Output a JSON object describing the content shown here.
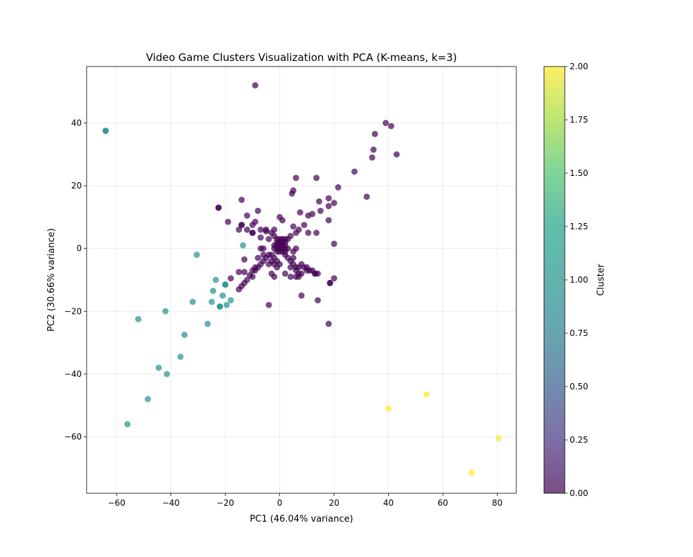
{
  "chart_data": {
    "type": "scatter",
    "title": "Video Game Clusters Visualization with PCA (K-means, k=3)",
    "xlabel": "PC1 (46.04% variance)",
    "ylabel": "PC2 (30.66% variance)",
    "xlim": [
      -71,
      87
    ],
    "ylim": [
      -78,
      58
    ],
    "xticks": [
      -60,
      -40,
      -20,
      0,
      20,
      40,
      60,
      80
    ],
    "yticks": [
      -60,
      -40,
      -20,
      0,
      20,
      40
    ],
    "grid": true,
    "marker_alpha": 0.7,
    "colormap": "viridis",
    "colorbar": {
      "label": "Cluster",
      "range": [
        0,
        2
      ],
      "ticks": [
        "0.00",
        "0.25",
        "0.50",
        "0.75",
        "1.00",
        "1.25",
        "1.50",
        "1.75",
        "2.00"
      ]
    },
    "series": [
      {
        "cluster": 0,
        "color": "#440154",
        "points": [
          [
            -9,
            52
          ],
          [
            39,
            40
          ],
          [
            41,
            39
          ],
          [
            35,
            36.5
          ],
          [
            34.5,
            31.5
          ],
          [
            43,
            30
          ],
          [
            34,
            29
          ],
          [
            27.5,
            24.5
          ],
          [
            21.5,
            19.5
          ],
          [
            13.5,
            22.5
          ],
          [
            6,
            22.5
          ],
          [
            5,
            18.5
          ],
          [
            4.5,
            17.5
          ],
          [
            32,
            16.5
          ],
          [
            18,
            16
          ],
          [
            14.5,
            15
          ],
          [
            20,
            14.5
          ],
          [
            18,
            13.5
          ],
          [
            15,
            12
          ],
          [
            7.5,
            11.5
          ],
          [
            12,
            11
          ],
          [
            10.5,
            10.5
          ],
          [
            18,
            9
          ],
          [
            -14,
            15.5
          ],
          [
            -8,
            12
          ],
          [
            -12,
            10.5
          ],
          [
            -19,
            8.5
          ],
          [
            -9,
            8.5
          ],
          [
            -14,
            7.5
          ],
          [
            -14,
            7.5
          ],
          [
            -10,
            7.5
          ],
          [
            -15,
            6
          ],
          [
            -12,
            6
          ],
          [
            -7,
            6
          ],
          [
            -5,
            6
          ],
          [
            -2,
            6
          ],
          [
            -5,
            5.5
          ],
          [
            -3,
            5
          ],
          [
            -2,
            4
          ],
          [
            -7,
            3.5
          ],
          [
            -4,
            3
          ],
          [
            -10,
            5
          ],
          [
            -10,
            5
          ],
          [
            0,
            10
          ],
          [
            1,
            9
          ],
          [
            5,
            7
          ],
          [
            9,
            7.5
          ],
          [
            7,
            6
          ],
          [
            6,
            5
          ],
          [
            4,
            4
          ],
          [
            3,
            3
          ],
          [
            10.5,
            5
          ],
          [
            13.5,
            5
          ],
          [
            -1,
            3
          ],
          [
            0,
            3
          ],
          [
            1,
            3
          ],
          [
            2,
            3
          ],
          [
            -1,
            2
          ],
          [
            0,
            2
          ],
          [
            1,
            2
          ],
          [
            2,
            2
          ],
          [
            -2,
            1
          ],
          [
            -1,
            1
          ],
          [
            0,
            1
          ],
          [
            1,
            1
          ],
          [
            2,
            1
          ],
          [
            -2,
            0
          ],
          [
            -1,
            0
          ],
          [
            0,
            0
          ],
          [
            1,
            0
          ],
          [
            2,
            0
          ],
          [
            3,
            0
          ],
          [
            -1,
            -1
          ],
          [
            0,
            -1
          ],
          [
            1,
            -1
          ],
          [
            2,
            -1
          ],
          [
            -7,
            0
          ],
          [
            -6,
            0
          ],
          [
            20,
            1.5
          ],
          [
            6,
            0
          ],
          [
            5,
            -1
          ],
          [
            -4,
            -2
          ],
          [
            -5,
            -3
          ],
          [
            -6,
            -4
          ],
          [
            -7,
            -5
          ],
          [
            -8,
            -6
          ],
          [
            -9,
            -7
          ],
          [
            -3,
            -2
          ],
          [
            -2,
            -3
          ],
          [
            -1,
            -4
          ],
          [
            0,
            -5
          ],
          [
            -1,
            -6
          ],
          [
            -3,
            -4
          ],
          [
            -4,
            -5
          ],
          [
            -2,
            -5
          ],
          [
            2,
            -2
          ],
          [
            3,
            -3
          ],
          [
            4,
            -4
          ],
          [
            5,
            -5
          ],
          [
            6,
            -6
          ],
          [
            7,
            -6
          ],
          [
            8,
            -5
          ],
          [
            9,
            -6
          ],
          [
            10,
            -7
          ],
          [
            12,
            -7
          ],
          [
            5,
            -3
          ],
          [
            4,
            -6
          ],
          [
            6,
            -7
          ],
          [
            7,
            -8
          ],
          [
            8,
            -8
          ],
          [
            10,
            -6
          ],
          [
            11,
            -7
          ],
          [
            13,
            -8
          ],
          [
            13,
            -8
          ],
          [
            14,
            -8
          ],
          [
            -13,
            -7.5
          ],
          [
            -15,
            -7.5
          ],
          [
            -18,
            -9.5
          ],
          [
            -11,
            -8.5
          ],
          [
            -10,
            -9
          ],
          [
            -12,
            -10
          ],
          [
            -13,
            -11
          ],
          [
            -14,
            -12
          ],
          [
            -15,
            -13
          ],
          [
            -9,
            -6
          ],
          [
            -10,
            -7
          ],
          [
            -3,
            -8
          ],
          [
            -2,
            -9
          ],
          [
            2,
            -8
          ],
          [
            4,
            -9
          ],
          [
            6,
            -9
          ],
          [
            7,
            -9
          ],
          [
            18.5,
            -11
          ],
          [
            18.5,
            -11
          ],
          [
            20,
            -9.5
          ],
          [
            14,
            -16.5
          ],
          [
            8,
            -15
          ],
          [
            -4,
            -18
          ],
          [
            18,
            -24
          ],
          [
            -22.5,
            13
          ],
          [
            -22.5,
            13
          ],
          [
            -13,
            -3.5
          ],
          [
            -8,
            -3
          ],
          [
            -6,
            -2
          ]
        ]
      },
      {
        "cluster": 1,
        "color": "#21918c",
        "points": [
          [
            -64,
            37.5
          ],
          [
            -64,
            37.5
          ],
          [
            -30.5,
            -2
          ],
          [
            -13.5,
            1
          ],
          [
            -23.5,
            -10
          ],
          [
            -24.5,
            -13.5
          ],
          [
            -21,
            -15
          ],
          [
            -20,
            -11.5
          ],
          [
            -20,
            -11.5
          ],
          [
            -18,
            -16.5
          ],
          [
            -25,
            -17
          ],
          [
            -22,
            -18.5
          ],
          [
            -22,
            -18.5
          ],
          [
            -19.5,
            -18
          ],
          [
            -32,
            -17
          ],
          [
            -42,
            -20
          ],
          [
            -52,
            -22.5
          ],
          [
            -26.5,
            -24
          ],
          [
            -35,
            -27.5
          ],
          [
            -36.5,
            -34.5
          ],
          [
            -44.5,
            -38
          ],
          [
            -41.5,
            -40
          ],
          [
            -48.5,
            -48
          ],
          [
            -56,
            -56
          ]
        ]
      },
      {
        "cluster": 2,
        "color": "#fde725",
        "points": [
          [
            54,
            -46.5
          ],
          [
            40,
            -51
          ],
          [
            80.5,
            -60.5
          ],
          [
            70.5,
            -71.5
          ]
        ]
      }
    ]
  }
}
